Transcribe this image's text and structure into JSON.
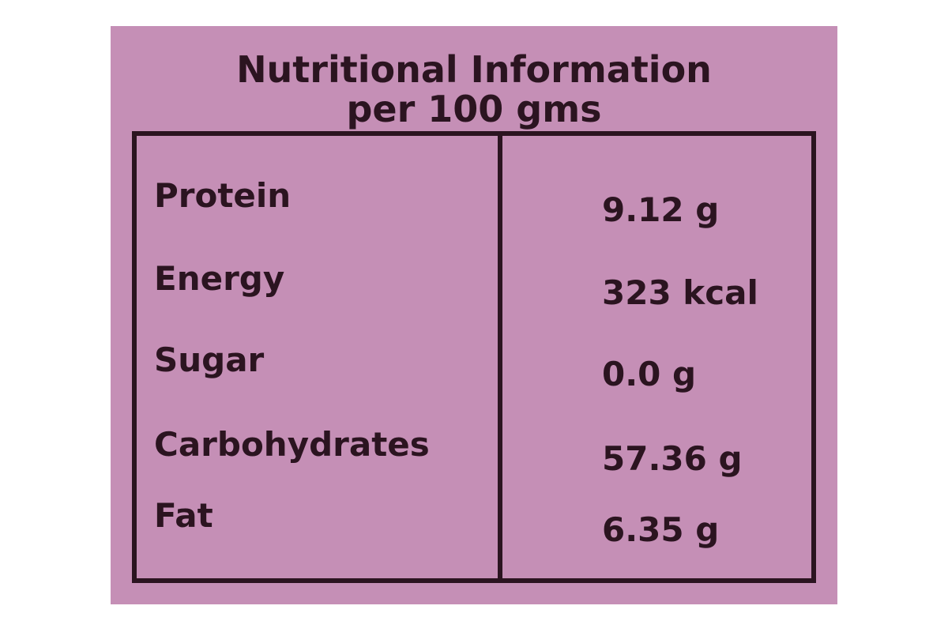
{
  "header": {
    "title": "Nutritional Information",
    "subtitle": "per 100 gms"
  },
  "table": {
    "rows": [
      [
        "Protein",
        "9.12 g"
      ],
      [
        "Energy",
        "323 kcal"
      ],
      [
        "Sugar",
        "0.0 g"
      ],
      [
        "Carbohydrates",
        "57.36 g"
      ],
      [
        "Fat",
        "6.35 g"
      ]
    ]
  }
}
